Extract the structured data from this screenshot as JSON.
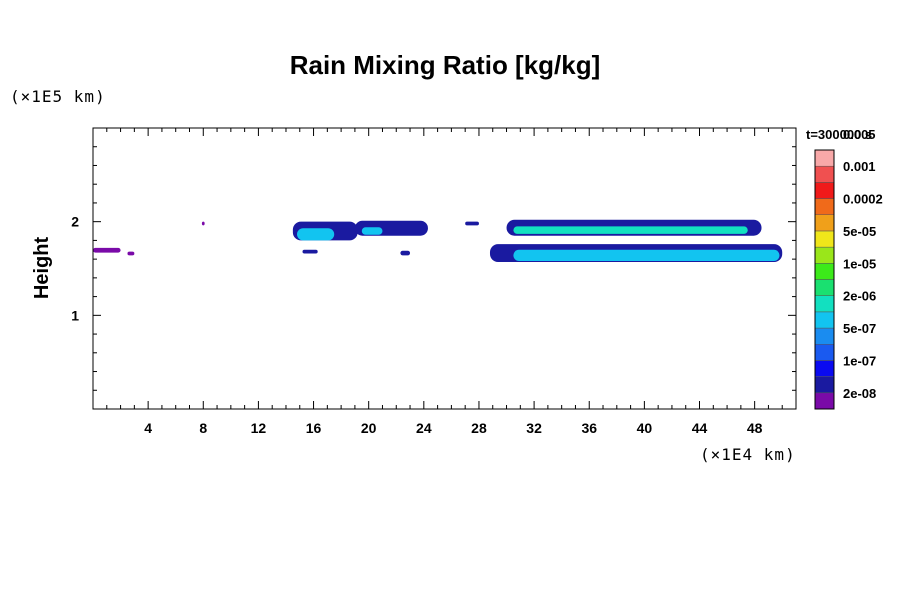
{
  "chart_data": {
    "type": "heatmap",
    "title": "Rain Mixing Ratio [kg/kg]",
    "ylabel": "Height",
    "yunit": "(×1E5 km)",
    "xunit": "(×1E4 km)",
    "time_label": "t=300000 s",
    "xlim": [
      0,
      51
    ],
    "ylim": [
      0,
      3
    ],
    "x_ticks": [
      4,
      8,
      12,
      16,
      20,
      24,
      28,
      32,
      36,
      40,
      44,
      48
    ],
    "y_ticks": [
      1,
      2
    ],
    "colorbar": {
      "colors": [
        "#7a0aa8",
        "#1a1aa0",
        "#0a0af0",
        "#1a5af0",
        "#1a8cf0",
        "#12c4f0",
        "#12e0c0",
        "#1ae070",
        "#3cea1a",
        "#9ae61a",
        "#f0e61a",
        "#f0a01a",
        "#f06a1a",
        "#f01a1a",
        "#f05050",
        "#f8a8a8"
      ],
      "labels": [
        "2e-08",
        "1e-07",
        "5e-07",
        "2e-06",
        "1e-05",
        "5e-05",
        "0.0002",
        "0.001",
        "0.005"
      ]
    },
    "regions": [
      {
        "level": 0,
        "x": [
          0,
          2
        ],
        "y": [
          1.67,
          1.72
        ]
      },
      {
        "level": 0,
        "x": [
          2.5,
          3
        ],
        "y": [
          1.64,
          1.68
        ]
      },
      {
        "level": 0,
        "x": [
          7.9,
          8.1
        ],
        "y": [
          1.96,
          2.0
        ]
      },
      {
        "level": 1,
        "x": [
          14.5,
          19.2
        ],
        "y": [
          1.8,
          2.0
        ]
      },
      {
        "level": 5,
        "x": [
          14.8,
          17.5
        ],
        "y": [
          1.8,
          1.93
        ]
      },
      {
        "level": 1,
        "x": [
          19.0,
          24.3
        ],
        "y": [
          1.85,
          2.01
        ]
      },
      {
        "level": 5,
        "x": [
          19.5,
          21.0
        ],
        "y": [
          1.86,
          1.94
        ]
      },
      {
        "level": 1,
        "x": [
          15.2,
          16.3
        ],
        "y": [
          1.66,
          1.7
        ]
      },
      {
        "level": 1,
        "x": [
          22.3,
          23.0
        ],
        "y": [
          1.64,
          1.69
        ]
      },
      {
        "level": 1,
        "x": [
          27.0,
          28.0
        ],
        "y": [
          1.96,
          2.0
        ]
      },
      {
        "level": 1,
        "x": [
          30.0,
          48.5
        ],
        "y": [
          1.85,
          2.02
        ]
      },
      {
        "level": 6,
        "x": [
          30.5,
          47.5
        ],
        "y": [
          1.87,
          1.95
        ]
      },
      {
        "level": 1,
        "x": [
          28.8,
          50.0
        ],
        "y": [
          1.57,
          1.76
        ]
      },
      {
        "level": 5,
        "x": [
          30.5,
          49.8
        ],
        "y": [
          1.58,
          1.7
        ]
      }
    ]
  }
}
